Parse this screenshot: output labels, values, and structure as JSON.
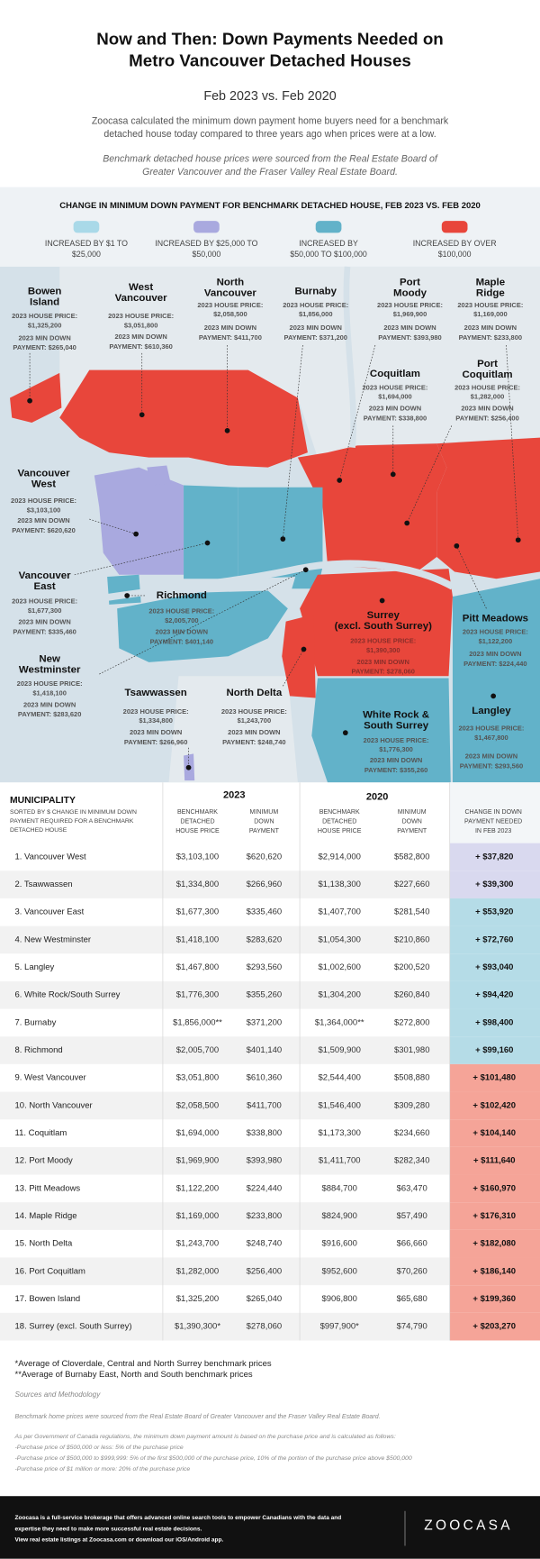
{
  "header": {
    "title": [
      "Now and Then: Down Payments Needed on",
      "Metro Vancouver Detached Houses"
    ],
    "subtitle": "Feb 2023 vs. Feb 2020",
    "intro": [
      "Zoocasa calculated the minimum down payment home buyers need for a benchmark",
      "detached house today compared to three years ago when prices were at a low."
    ],
    "note": [
      "Benchmark detached house prices were sourced from the Real Estate Board of",
      "Greater Vancouver and the Fraser Valley Real Estate Board."
    ]
  },
  "legend": {
    "heading": "CHANGE IN MINIMUM DOWN PAYMENT FOR BENCHMARK DETACHED HOUSE, FEB 2023 VS. FEB 2020",
    "items": [
      {
        "label": [
          "INCREASED BY $1 TO",
          "$25,000"
        ],
        "color": "#a9d9e8"
      },
      {
        "label": [
          "INCREASED BY $25,000 TO",
          "$50,000"
        ],
        "color": "#a9a9df"
      },
      {
        "label": [
          "INCREASED BY",
          "$50,000 TO $100,000"
        ],
        "color": "#62b2c9"
      },
      {
        "label": [
          "INCREASED BY OVER",
          "$100,000"
        ],
        "color": "#e8463b"
      }
    ]
  },
  "map": {
    "labels": [
      {
        "name": [
          "Bowen",
          "Island"
        ],
        "price": [
          "2023 HOUSE PRICE:",
          "$1,325,200"
        ],
        "down": [
          "2023 MIN DOWN",
          "PAYMENT: $265,040"
        ]
      },
      {
        "name": [
          "West",
          "Vancouver"
        ],
        "price": [
          "2023 HOUSE PRICE:",
          "$3,051,800"
        ],
        "down": [
          "2023 MIN DOWN",
          "PAYMENT: $610,360"
        ]
      },
      {
        "name": [
          "North",
          "Vancouver"
        ],
        "price": [
          "2023 HOUSE PRICE:",
          "$2,058,500"
        ],
        "down": [
          "2023 MIN DOWN",
          "PAYMENT: $411,700"
        ]
      },
      {
        "name": [
          "Burnaby"
        ],
        "price": [
          "2023 HOUSE PRICE:",
          "$1,856,000"
        ],
        "down": [
          "2023 MIN DOWN",
          "PAYMENT: $371,200"
        ]
      },
      {
        "name": [
          "Port",
          "Moody"
        ],
        "price": [
          "2023 HOUSE PRICE:",
          "$1,969,900"
        ],
        "down": [
          "2023 MIN DOWN",
          "PAYMENT: $393,980"
        ]
      },
      {
        "name": [
          "Maple",
          "Ridge"
        ],
        "price": [
          "2023 HOUSE PRICE:",
          "$1,169,000"
        ],
        "down": [
          "2023 MIN DOWN",
          "PAYMENT: $233,800"
        ]
      },
      {
        "name": [
          "Coquitlam"
        ],
        "price": [
          "2023 HOUSE PRICE:",
          "$1,694,000"
        ],
        "down": [
          "2023 MIN DOWN",
          "PAYMENT: $338,800"
        ]
      },
      {
        "name": [
          "Port",
          "Coquitlam"
        ],
        "price": [
          "2023 HOUSE PRICE:",
          "$1,282,000"
        ],
        "down": [
          "2023 MIN DOWN",
          "PAYMENT: $256,400"
        ]
      },
      {
        "name": [
          "Vancouver",
          "West"
        ],
        "price": [
          "2023 HOUSE PRICE:",
          "$3,103,100"
        ],
        "down": [
          "2023 MIN DOWN",
          "PAYMENT: $620,620"
        ]
      },
      {
        "name": [
          "Vancouver",
          "East"
        ],
        "price": [
          "2023 HOUSE PRICE:",
          "$1,677,300"
        ],
        "down": [
          "2023 MIN DOWN",
          "PAYMENT: $335,460"
        ]
      },
      {
        "name": [
          "Richmond"
        ],
        "price": [
          "2023 HOUSE PRICE:",
          "$2,005,700"
        ],
        "down": [
          "2023 MIN DOWN",
          "PAYMENT: $401,140"
        ]
      },
      {
        "name": [
          "Surrey",
          "(excl. South Surrey)"
        ],
        "price": [
          "2023 HOUSE PRICE:",
          "$1,390,300"
        ],
        "down": [
          "2023 MIN DOWN",
          "PAYMENT: $278,060"
        ]
      },
      {
        "name": [
          "Pitt Meadows"
        ],
        "price": [
          "2023 HOUSE PRICE:",
          "$1,122,200"
        ],
        "down": [
          "2023 MIN DOWN",
          "PAYMENT: $224,440"
        ]
      },
      {
        "name": [
          "New",
          "Westminster"
        ],
        "price": [
          "2023 HOUSE PRICE:",
          "$1,418,100"
        ],
        "down": [
          "2023 MIN DOWN",
          "PAYMENT: $283,620"
        ]
      },
      {
        "name": [
          "Tsawwassen"
        ],
        "price": [
          "2023 HOUSE PRICE:",
          "$1,334,800"
        ],
        "down": [
          "2023 MIN DOWN",
          "PAYMENT: $266,960"
        ]
      },
      {
        "name": [
          "North Delta"
        ],
        "price": [
          "2023 HOUSE PRICE:",
          "$1,243,700"
        ],
        "down": [
          "2023 MIN DOWN",
          "PAYMENT: $248,740"
        ]
      },
      {
        "name": [
          "Langley"
        ],
        "price": [
          "2023 HOUSE PRICE:",
          "$1,467,800"
        ],
        "down": [
          "2023 MIN DOWN",
          "PAYMENT: $293,560"
        ]
      },
      {
        "name": [
          "White Rock &",
          "South Surrey"
        ],
        "price": [
          "2023 HOUSE PRICE:",
          "$1,776,300"
        ],
        "down": [
          "2023 MIN DOWN",
          "PAYMENT: $355,260"
        ]
      }
    ]
  },
  "table": {
    "heading": "MUNICIPALITY",
    "sort_note": [
      "SORTED BY $ CHANGE IN MINIMUM DOWN",
      "PAYMENT REQUIRED FOR A BENCHMARK",
      "DETACHED HOUSE"
    ],
    "years": [
      "2023",
      "2020"
    ],
    "columns": [
      [
        "BENCHMARK",
        "DETACHED",
        "HOUSE PRICE"
      ],
      [
        "MINIMUM",
        "DOWN",
        "PAYMENT"
      ],
      [
        "BENCHMARK",
        "DETACHED",
        "HOUSE PRICE"
      ],
      [
        "MINIMUM",
        "DOWN",
        "PAYMENT"
      ],
      [
        "CHANGE IN DOWN",
        "PAYMENT NEEDED",
        "IN FEB 2023"
      ]
    ],
    "rows": [
      {
        "cells": [
          "1. Vancouver West",
          "$3,103,100",
          "$620,620",
          "$2,914,000",
          "$582,800",
          "+ $37,820"
        ],
        "color": "#d9d9ef"
      },
      {
        "cells": [
          "2. Tsawwassen",
          "$1,334,800",
          "$266,960",
          "$1,138,300",
          "$227,660",
          "+ $39,300"
        ],
        "color": "#d9d9ef"
      },
      {
        "cells": [
          "3. Vancouver East",
          "$1,677,300",
          "$335,460",
          "$1,407,700",
          "$281,540",
          "+ $53,920"
        ],
        "color": "#b5dce7"
      },
      {
        "cells": [
          "4. New Westminster",
          "$1,418,100",
          "$283,620",
          "$1,054,300",
          "$210,860",
          "+ $72,760"
        ],
        "color": "#b5dce7"
      },
      {
        "cells": [
          "5. Langley",
          "$1,467,800",
          "$293,560",
          "$1,002,600",
          "$200,520",
          "+ $93,040"
        ],
        "color": "#b5dce7"
      },
      {
        "cells": [
          "6. White Rock/South Surrey",
          "$1,776,300",
          "$355,260",
          "$1,304,200",
          "$260,840",
          "+ $94,420"
        ],
        "color": "#b5dce7"
      },
      {
        "cells": [
          "7. Burnaby",
          "$1,856,000**",
          "$371,200",
          "$1,364,000**",
          "$272,800",
          "+ $98,400"
        ],
        "color": "#b5dce7"
      },
      {
        "cells": [
          "8. Richmond",
          "$2,005,700",
          "$401,140",
          "$1,509,900",
          "$301,980",
          "+ $99,160"
        ],
        "color": "#b5dce7"
      },
      {
        "cells": [
          "9. West Vancouver",
          "$3,051,800",
          "$610,360",
          "$2,544,400",
          "$508,880",
          "+ $101,480"
        ],
        "color": "#f5a498"
      },
      {
        "cells": [
          "10. North Vancouver",
          "$2,058,500",
          "$411,700",
          "$1,546,400",
          "$309,280",
          "+ $102,420"
        ],
        "color": "#f5a498"
      },
      {
        "cells": [
          "11. Coquitlam",
          "$1,694,000",
          "$338,800",
          "$1,173,300",
          "$234,660",
          "+ $104,140"
        ],
        "color": "#f5a498"
      },
      {
        "cells": [
          "12. Port Moody",
          "$1,969,900",
          "$393,980",
          "$1,411,700",
          "$282,340",
          "+ $111,640"
        ],
        "color": "#f5a498"
      },
      {
        "cells": [
          "13. Pitt Meadows",
          "$1,122,200",
          "$224,440",
          "$884,700",
          "$63,470",
          "+ $160,970"
        ],
        "color": "#f5a498"
      },
      {
        "cells": [
          "14. Maple Ridge",
          "$1,169,000",
          "$233,800",
          "$824,900",
          "$57,490",
          "+ $176,310"
        ],
        "color": "#f5a498"
      },
      {
        "cells": [
          "15. North Delta",
          "$1,243,700",
          "$248,740",
          "$916,600",
          "$66,660",
          "+ $182,080"
        ],
        "color": "#f5a498"
      },
      {
        "cells": [
          "16. Port Coquitlam",
          "$1,282,000",
          "$256,400",
          "$952,600",
          "$70,260",
          "+ $186,140"
        ],
        "color": "#f5a498"
      },
      {
        "cells": [
          "17. Bowen Island",
          "$1,325,200",
          "$265,040",
          "$906,800",
          "$65,680",
          "+ $199,360"
        ],
        "color": "#f5a498"
      },
      {
        "cells": [
          "18. Surrey (excl. South Surrey)",
          "$1,390,300*",
          "$278,060",
          "$997,900*",
          "$74,790",
          "+ $203,270"
        ],
        "color": "#f5a498"
      }
    ]
  },
  "footnotes": [
    "*Average of Cloverdale, Central and North Surrey benchmark prices",
    "**Average of Burnaby East, North and South benchmark prices"
  ],
  "sources": {
    "heading": "Sources and Methodology",
    "text": "Benchmark home prices were sourced from the Real Estate Board of Greater Vancouver and the Fraser Valley Real Estate Board.",
    "rules": [
      "As per Government of Canada regulations, the minimum down payment amount is based on the purchase price and is calculated as follows:",
      "-Purchase price of $500,000 or less: 5% of the purchase price",
      "-Purchase price of $500,000 to $999,999: 5% of the first $500,000 of the purchase price, 10% of the portion of the purchase price above $500,000",
      "-Purchase price of $1 million or more: 20% of the purchase price"
    ]
  },
  "footer": {
    "text": [
      "Zoocasa is a full-service brokerage that offers advanced online search tools to empower Canadians with the data and",
      "expertise they need to make more successful real estate decisions.",
      "View real estate listings at Zoocasa.com or download our iOS/Android app."
    ],
    "logo": "ZOOCASA"
  }
}
